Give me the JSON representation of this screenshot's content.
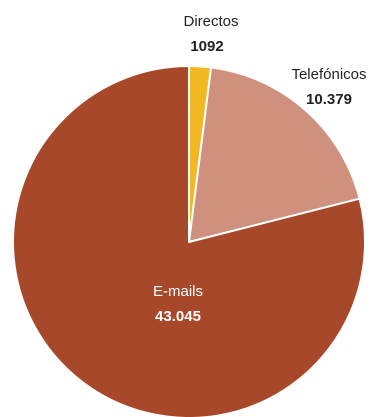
{
  "chart_data": {
    "type": "pie",
    "slices": [
      {
        "label": "Directos",
        "value_label": "1092",
        "value": 1092,
        "color": "#f2b824"
      },
      {
        "label": "Telefónicos",
        "value_label": "10.379",
        "value": 10379,
        "color": "#d0907e"
      },
      {
        "label": "E-mails",
        "value_label": "43.045",
        "value": 43045,
        "color": "#a8482a"
      }
    ],
    "label_colors": {
      "outside": "#222222",
      "inside": "#ffffff"
    },
    "start": "top",
    "direction": "clockwise"
  }
}
